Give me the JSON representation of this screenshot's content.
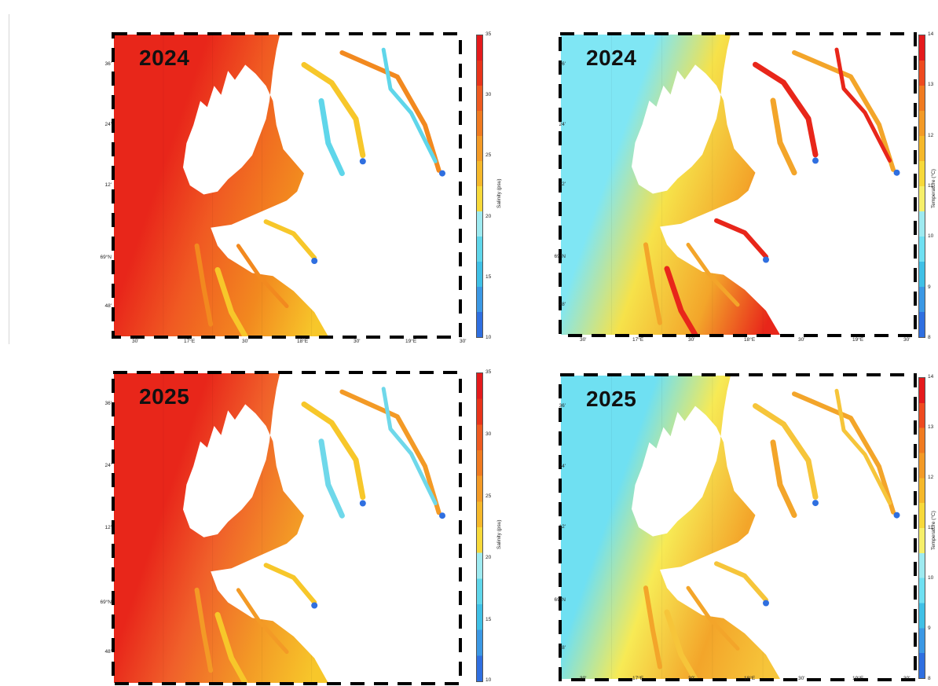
{
  "panels": [
    {
      "id": "salinity-2024",
      "year": "2024",
      "colorbar": {
        "title": "Salinity (psu)",
        "ticks": [
          "35",
          "30",
          "25",
          "20",
          "15",
          "10"
        ],
        "min": 10,
        "max": 35
      },
      "lat_labels": [
        "36'",
        "24'",
        "12'",
        "69°N",
        "48'"
      ],
      "lon_labels": [
        "30'",
        "17°E",
        "30'",
        "18°E",
        "30'",
        "19°E",
        "30'"
      ],
      "palette": {
        "offshore": "#e8261a",
        "mid": "#f05a22",
        "inner": "#f2891f",
        "fjord_head": "#f7c72a",
        "fresh": "#5fd6ea",
        "freshest": "#2f6fe0"
      }
    },
    {
      "id": "temperature-2024",
      "year": "2024",
      "colorbar": {
        "title": "Temperature (°C)",
        "ticks": [
          "14",
          "13",
          "12",
          "11",
          "10",
          "9",
          "8"
        ],
        "min": 8,
        "max": 14
      },
      "lat_labels": [
        "36'",
        "24'",
        "12'",
        "69°N",
        "48'"
      ],
      "lon_labels": [
        "30'",
        "17°E",
        "30'",
        "18°E",
        "30'",
        "19°E",
        "30'"
      ],
      "palette": {
        "offshore": "#7fe6f4",
        "mid": "#f6e24a",
        "inner": "#f3a52a",
        "fjord_head": "#e8261a",
        "fresh": "#5fd6ea",
        "freshest": "#2f6fe0"
      }
    },
    {
      "id": "salinity-2025",
      "year": "2025",
      "colorbar": {
        "title": "Salinity (psu)",
        "ticks": [
          "35",
          "30",
          "25",
          "20",
          "15",
          "10"
        ],
        "min": 10,
        "max": 35
      },
      "lat_labels": [
        "36'",
        "24'",
        "12'",
        "69°N",
        "48'"
      ],
      "lon_labels": [],
      "palette": {
        "offshore": "#e8261a",
        "mid": "#f0602a",
        "inner": "#f39a26",
        "fjord_head": "#f7c72a",
        "fresh": "#6fd8ea",
        "freshest": "#2f6fe0"
      }
    },
    {
      "id": "temperature-2025",
      "year": "2025",
      "colorbar": {
        "title": "Temperature (°C)",
        "ticks": [
          "14",
          "13",
          "12",
          "11",
          "10",
          "9",
          "8"
        ],
        "min": 8,
        "max": 14
      },
      "lat_labels": [
        "36'",
        "24'",
        "12'",
        "69°N",
        "48'"
      ],
      "lon_labels": [
        "30'",
        "17°E",
        "30'",
        "18°E",
        "30'",
        "19°E",
        "30'"
      ],
      "palette": {
        "offshore": "#6fe0f2",
        "mid": "#f7ea55",
        "inner": "#f3a52a",
        "fjord_head": "#f6c53a",
        "fresh": "#5fd6ea",
        "freshest": "#2f6fe0"
      }
    }
  ]
}
